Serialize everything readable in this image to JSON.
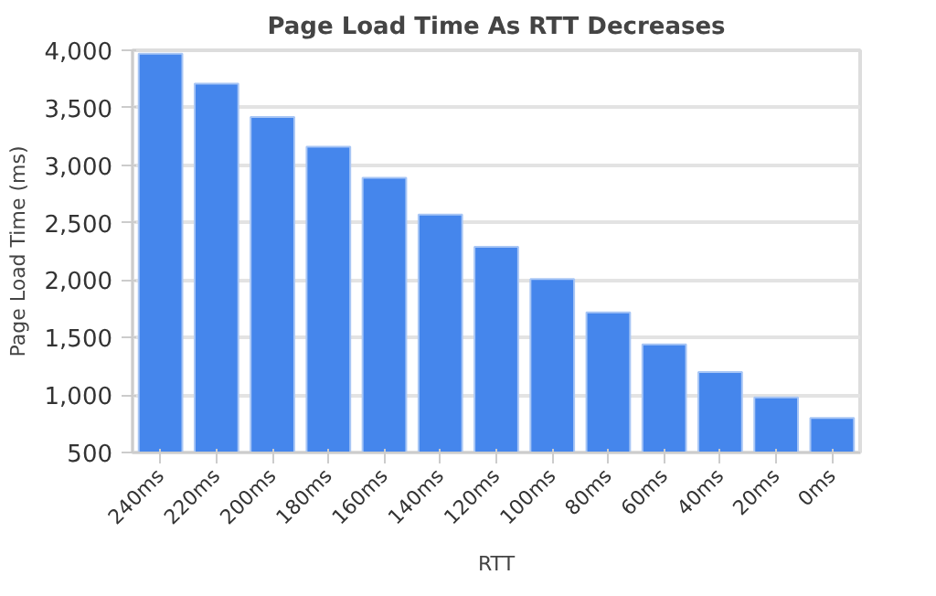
{
  "chart_data": {
    "type": "bar",
    "title": "Page Load Time As RTT Decreases",
    "xlabel": "RTT",
    "ylabel": "Page Load Time (ms)",
    "categories": [
      "240ms",
      "220ms",
      "200ms",
      "180ms",
      "160ms",
      "140ms",
      "120ms",
      "100ms",
      "80ms",
      "60ms",
      "40ms",
      "20ms",
      "0ms"
    ],
    "values": [
      3970,
      3710,
      3420,
      3160,
      2890,
      2570,
      2290,
      2010,
      1720,
      1440,
      1200,
      980,
      800
    ],
    "color": "#4586ec",
    "ylim": [
      500,
      4000
    ],
    "yticks": [
      {
        "value": 500,
        "label": "500"
      },
      {
        "value": 1000,
        "label": "1,000"
      },
      {
        "value": 1500,
        "label": "1,500"
      },
      {
        "value": 2000,
        "label": "2,000"
      },
      {
        "value": 2500,
        "label": "2,500"
      },
      {
        "value": 3000,
        "label": "3,000"
      },
      {
        "value": 3500,
        "label": "3,500"
      },
      {
        "value": 4000,
        "label": "4,000"
      }
    ],
    "grid": "y"
  }
}
